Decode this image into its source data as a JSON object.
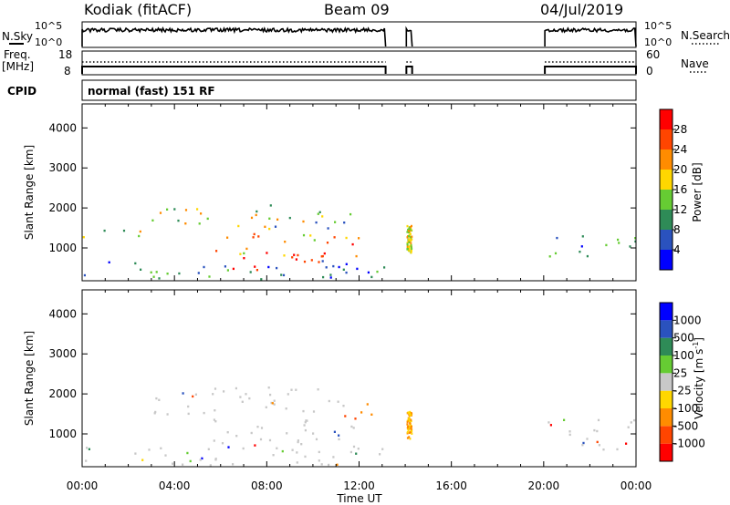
{
  "header": {
    "station": "Kodiak (fitACF)",
    "beam": "Beam 09",
    "date": "04/Jul/2019"
  },
  "panels": {
    "nsky": {
      "left_label": "N.Sky",
      "right_label": "N.Search",
      "left_ticks": [
        "10^5",
        "10^0"
      ],
      "right_ticks": [
        "10^5",
        "10^0"
      ]
    },
    "freq": {
      "left_label_1": "Freq.",
      "left_label_2": "[MHz]",
      "right_label": "Nave",
      "left_ticks": [
        "18",
        "8"
      ],
      "right_ticks": [
        "60",
        "0"
      ]
    },
    "cpid": {
      "label": "CPID",
      "mode": "normal (fast) 151 RF"
    }
  },
  "colors": {
    "power_scale": [
      "#0000ff",
      "#2a52be",
      "#2e8b57",
      "#66cc33",
      "#ffd700",
      "#ff8c00",
      "#ff4500",
      "#ff0000"
    ],
    "velocity_scale": [
      "#ff0000",
      "#ff4500",
      "#ff8c00",
      "#ffd700",
      "#c8c8c8",
      "#66cc33",
      "#2e8b57",
      "#2a52be",
      "#0000ff"
    ],
    "ground_scatter": "#c8c8c8"
  },
  "chart_data": [
    {
      "type": "heatmap",
      "panel": "power",
      "xlabel": "Time UT",
      "ylabel": "Slant Range [km]",
      "x_ticks": [
        "00:00",
        "04:00",
        "08:00",
        "12:00",
        "16:00",
        "20:00",
        "00:00"
      ],
      "xlim_hours": [
        0,
        24
      ],
      "y_ticks": [
        1000,
        2000,
        3000,
        4000
      ],
      "ylim": [
        180,
        4600
      ],
      "colorbar": {
        "label": "Power [dB]",
        "ticks": [
          4,
          8,
          12,
          16,
          20,
          24,
          28
        ],
        "range": [
          0,
          32
        ]
      },
      "data_gaps_hours": [
        [
          13.2,
          14.0
        ],
        [
          14.3,
          20.0
        ]
      ],
      "scatter_regions": [
        {
          "t": [
            0.0,
            13.1
          ],
          "r": [
            200,
            700
          ],
          "level": "low"
        },
        {
          "t": [
            0.0,
            3.0
          ],
          "r": [
            1200,
            1500
          ],
          "level": "mid"
        },
        {
          "t": [
            3.0,
            6.0
          ],
          "r": [
            1550,
            2200
          ],
          "level": "mid"
        },
        {
          "t": [
            6.0,
            12.0
          ],
          "r": [
            1500,
            2100
          ],
          "level": "mid"
        },
        {
          "t": [
            5.5,
            12.0
          ],
          "r": [
            800,
            1400
          ],
          "level": "strong"
        },
        {
          "t": [
            6.5,
            10.5
          ],
          "r": [
            450,
            1000
          ],
          "level": "max"
        },
        {
          "t": [
            20.0,
            24.0
          ],
          "r": [
            800,
            1400
          ],
          "level": "low"
        }
      ]
    },
    {
      "type": "heatmap",
      "panel": "velocity",
      "xlabel": "Time UT",
      "ylabel": "Slant Range [km]",
      "x_ticks": [
        "00:00",
        "04:00",
        "08:00",
        "12:00",
        "16:00",
        "20:00",
        "00:00"
      ],
      "xlim_hours": [
        0,
        24
      ],
      "y_ticks": [
        1000,
        2000,
        3000,
        4000
      ],
      "ylim": [
        180,
        4600
      ],
      "colorbar": {
        "label": "Velocity [m s^-1]",
        "ticks": [
          "1000",
          "500",
          "100",
          "25",
          "-25",
          "-100",
          "-500",
          "-1000"
        ]
      },
      "data_gaps_hours": [
        [
          13.2,
          14.0
        ],
        [
          14.3,
          20.0
        ]
      ],
      "scatter_regions": [
        {
          "t": [
            0.0,
            13.1
          ],
          "r": [
            200,
            700
          ],
          "level": "ground"
        },
        {
          "t": [
            5.5,
            12.5
          ],
          "r": [
            700,
            1400
          ],
          "level": "ground"
        },
        {
          "t": [
            3.0,
            12.0
          ],
          "r": [
            1500,
            2200
          ],
          "level": "ground"
        },
        {
          "t": [
            11.0,
            13.0
          ],
          "r": [
            1400,
            1800
          ],
          "level": "negative"
        },
        {
          "t": [
            20.0,
            24.0
          ],
          "r": [
            600,
            1400
          ],
          "level": "ground"
        }
      ]
    }
  ]
}
